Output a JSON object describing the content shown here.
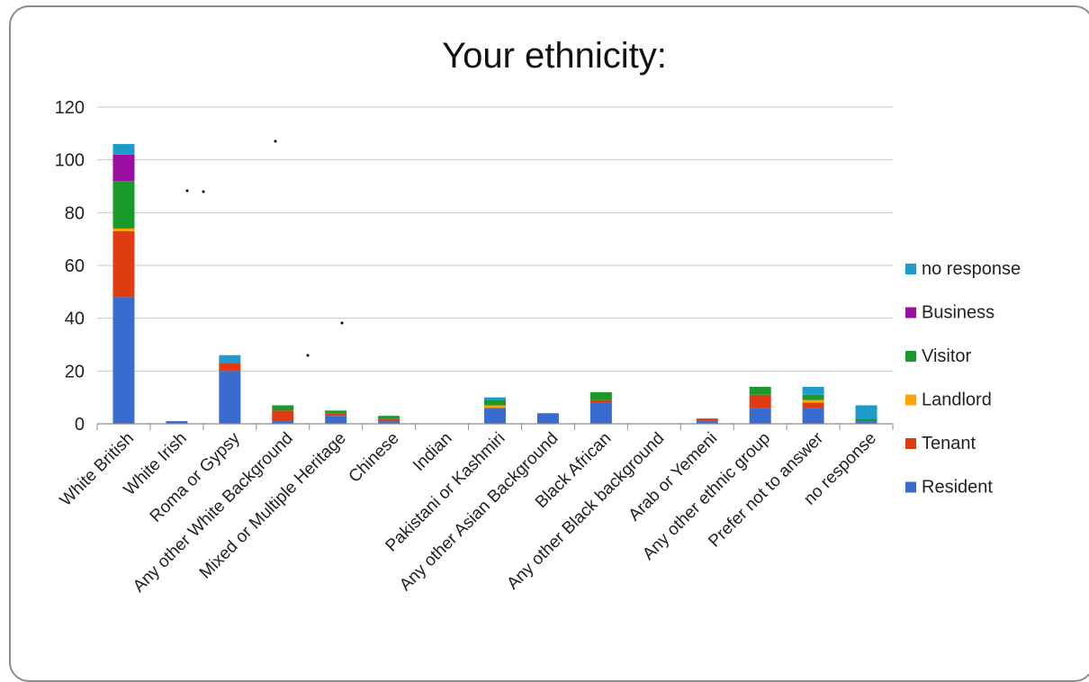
{
  "chart_data": {
    "type": "bar",
    "stacked": true,
    "title": "Your ethnicity:",
    "xlabel": "",
    "ylabel": "",
    "ylim": [
      0,
      120
    ],
    "yticks": [
      0,
      20,
      40,
      60,
      80,
      100,
      120
    ],
    "grid": true,
    "legend_position": "right",
    "categories": [
      "White British",
      "White Irish",
      "Roma or Gypsy",
      "Any other White Background",
      "Mixed or Multiple Heritage",
      "Chinese",
      "Indian",
      "Pakistani or Kashmiri",
      "Any other Asian Background",
      "Black African",
      "Any other Black background",
      "Arab or Yemeni",
      "Any other ethnic group",
      "Prefer not to answer",
      "no response"
    ],
    "series": [
      {
        "name": "Resident",
        "color": "#3a6ccf",
        "values": [
          48,
          1,
          20,
          1,
          3,
          1,
          0,
          6,
          4,
          8,
          0,
          1,
          6,
          6,
          1
        ]
      },
      {
        "name": "Tenant",
        "color": "#e03c12",
        "values": [
          25,
          0,
          3,
          4,
          1,
          1,
          0,
          0,
          0,
          1,
          0,
          1,
          5,
          2,
          0
        ]
      },
      {
        "name": "Landlord",
        "color": "#ffa400",
        "values": [
          1,
          0,
          0,
          0,
          0,
          0,
          0,
          1,
          0,
          0,
          0,
          0,
          0,
          1,
          0
        ]
      },
      {
        "name": "Visitor",
        "color": "#1a9a2a",
        "values": [
          18,
          0,
          0,
          2,
          1,
          1,
          0,
          2,
          0,
          3,
          0,
          0,
          3,
          2,
          1
        ]
      },
      {
        "name": "Business",
        "color": "#9b0fa3",
        "values": [
          10,
          0,
          0,
          0,
          0,
          0,
          0,
          0,
          0,
          0,
          0,
          0,
          0,
          0,
          0
        ]
      },
      {
        "name": "no response",
        "color": "#1d9ccc",
        "values": [
          4,
          0,
          3,
          0,
          0,
          0,
          0,
          1,
          0,
          0,
          0,
          0,
          0,
          3,
          5
        ]
      }
    ]
  }
}
